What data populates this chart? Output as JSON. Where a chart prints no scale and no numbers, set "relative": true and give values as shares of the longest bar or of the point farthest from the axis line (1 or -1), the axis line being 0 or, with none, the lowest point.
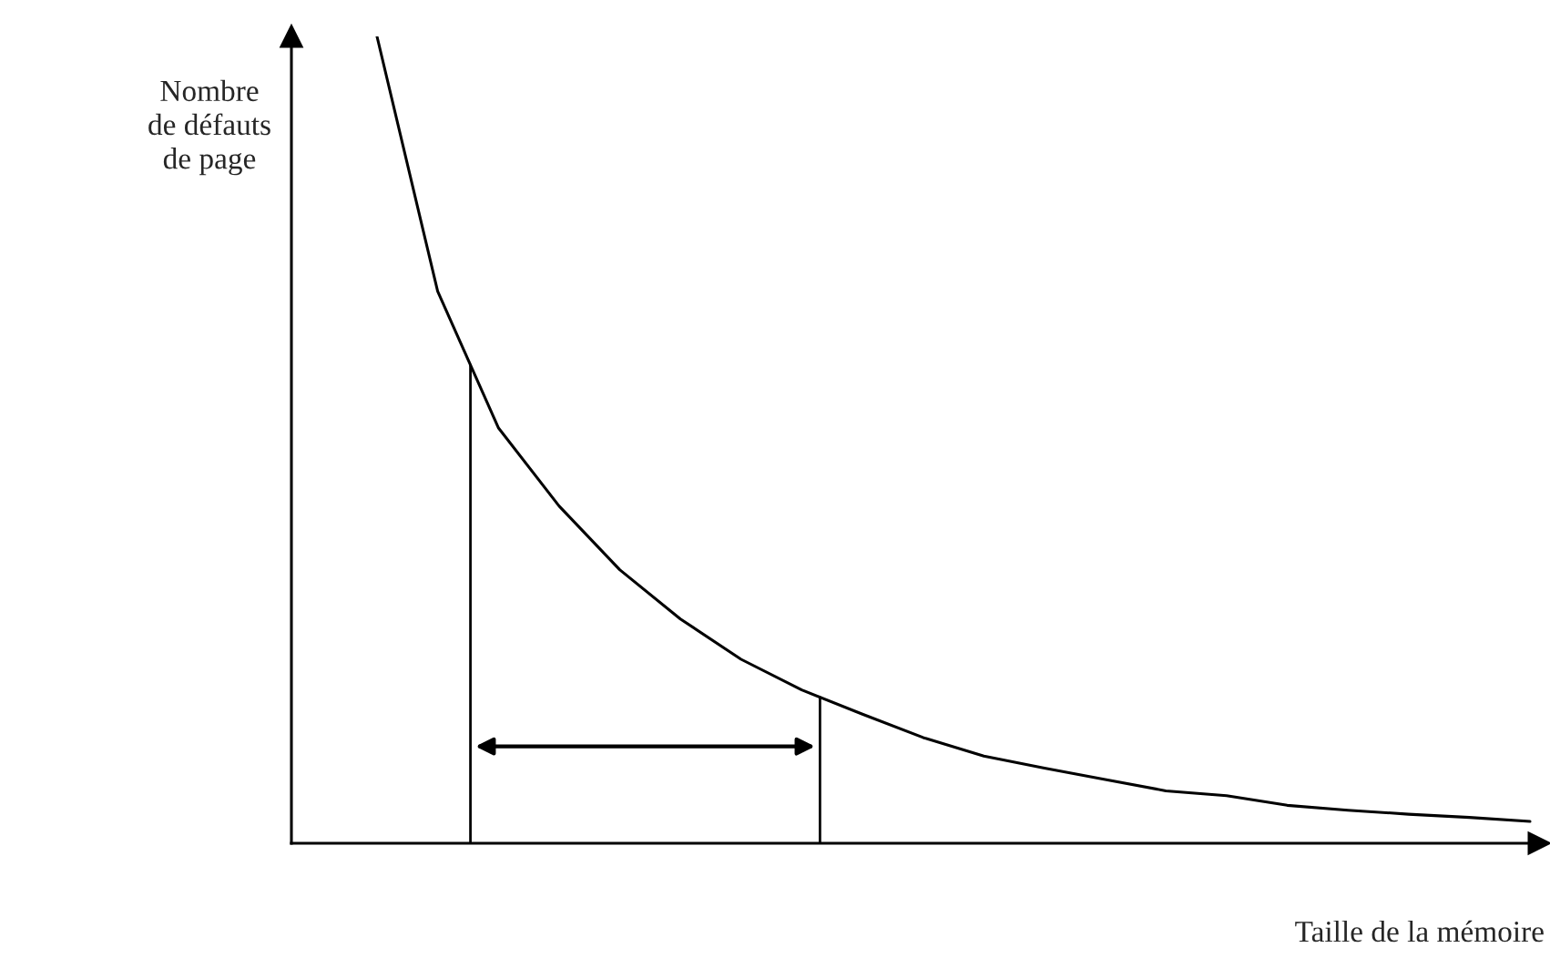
{
  "chart_data": {
    "type": "line",
    "relative": true,
    "xlabel": "Taille de la mémoire",
    "ylabel": "Nombre\nde défauts\nde page",
    "categories": [
      null,
      null,
      null,
      null,
      null,
      null,
      null,
      null,
      null,
      null,
      null,
      null,
      null,
      null,
      null,
      null,
      null,
      null,
      null,
      null
    ],
    "series": [
      {
        "color": "#000000",
        "values": [
          1,
          0.684,
          0.515,
          0.418,
          0.339,
          0.278,
          0.228,
          0.19,
          0.16,
          0.131,
          0.108,
          0.093,
          0.079,
          0.065,
          0.059,
          0.047,
          0.041,
          0.036,
          0.032,
          0.027
        ]
      }
    ],
    "legend": false,
    "marker": "none",
    "line_style": "solid"
  }
}
